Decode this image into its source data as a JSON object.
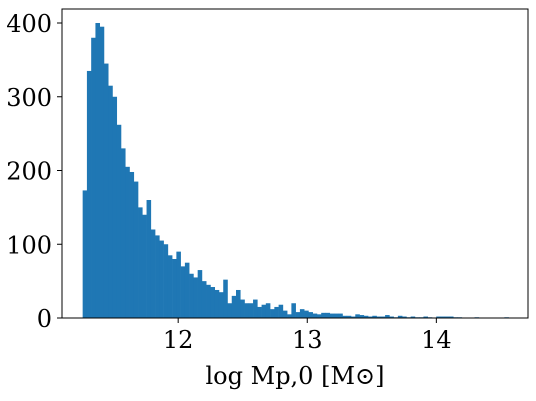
{
  "chart_data": {
    "type": "histogram",
    "xlabel": "log Mp,0 [M⊙]",
    "color": "#1f77b4",
    "bins": [
      11.26,
      11.293,
      11.326,
      11.359,
      11.392,
      11.425,
      11.458,
      11.491,
      11.524,
      11.557,
      11.59,
      11.623,
      11.656,
      11.689,
      11.722,
      11.755,
      11.788,
      11.821,
      11.854,
      11.887,
      11.92,
      11.953,
      11.986,
      12.019,
      12.052,
      12.085,
      12.118,
      12.151,
      12.184,
      12.217,
      12.25,
      12.283,
      12.316,
      12.349,
      12.382,
      12.415,
      12.448,
      12.481,
      12.514,
      12.547,
      12.58,
      12.613,
      12.646,
      12.679,
      12.712,
      12.745,
      12.778,
      12.811,
      12.844,
      12.877,
      12.91,
      12.943,
      12.976,
      13.009,
      13.042,
      13.075,
      13.108,
      13.141,
      13.174,
      13.207,
      13.24,
      13.273,
      13.306,
      13.339,
      13.372,
      13.405,
      13.438,
      13.471,
      13.504,
      13.537,
      13.57,
      13.603,
      13.636,
      13.669,
      13.702,
      13.735,
      13.768,
      13.801,
      13.834,
      13.867,
      13.9,
      13.933,
      13.966,
      13.999,
      14.032,
      14.065,
      14.098,
      14.131,
      14.164,
      14.197,
      14.23,
      14.263,
      14.296,
      14.329,
      14.362,
      14.395,
      14.428,
      14.461,
      14.494,
      14.527,
      14.56
    ],
    "counts": [
      173,
      335,
      380,
      400,
      395,
      345,
      315,
      300,
      262,
      230,
      205,
      198,
      185,
      150,
      140,
      160,
      120,
      112,
      105,
      100,
      85,
      80,
      90,
      70,
      75,
      60,
      55,
      65,
      50,
      45,
      42,
      38,
      35,
      52,
      20,
      30,
      38,
      25,
      20,
      20,
      25,
      15,
      18,
      20,
      12,
      15,
      18,
      10,
      5,
      20,
      8,
      12,
      10,
      8,
      6,
      5,
      7,
      7,
      6,
      6,
      6,
      3,
      3,
      2,
      5,
      4,
      3,
      2,
      3,
      2,
      2,
      4,
      2,
      1,
      3,
      2,
      1,
      2,
      1,
      1,
      2,
      1,
      0,
      2,
      2,
      2,
      2,
      1,
      1,
      0,
      0,
      0,
      1,
      0,
      0,
      0,
      0,
      0,
      0,
      1
    ],
    "xlim": [
      11.1,
      14.71
    ],
    "ylim": [
      0,
      419
    ],
    "xticks": [
      12,
      13,
      14
    ],
    "yticks": [
      0,
      100,
      200,
      300,
      400
    ]
  }
}
